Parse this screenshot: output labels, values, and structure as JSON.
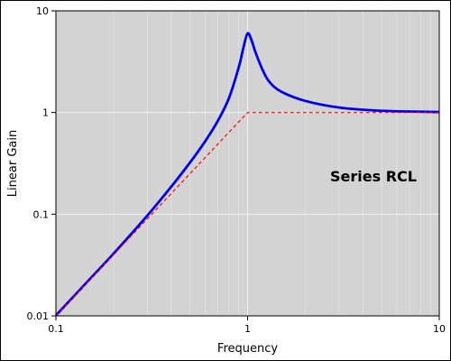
{
  "chart_data": {
    "type": "line",
    "xlabel": "Frequency",
    "ylabel": "Linear Gain",
    "annotation": "Series RCL",
    "x_scale": "log",
    "y_scale": "log",
    "xlim": [
      0.1,
      10
    ],
    "ylim": [
      0.01,
      10
    ],
    "x_ticks": [
      {
        "value": 0.1,
        "label": "0.1"
      },
      {
        "value": 1,
        "label": "1"
      },
      {
        "value": 10,
        "label": "10"
      }
    ],
    "y_ticks": [
      {
        "value": 0.01,
        "label": "0.01"
      },
      {
        "value": 0.1,
        "label": "0.1"
      },
      {
        "value": 1,
        "label": "1"
      },
      {
        "value": 10,
        "label": "10"
      }
    ],
    "grid": true,
    "background_color": "#d3d3d3",
    "series": [
      {
        "style": "solid",
        "color": "#0000ee",
        "x": [
          0.1,
          0.15,
          0.2,
          0.3,
          0.4,
          0.5,
          0.6,
          0.7,
          0.8,
          0.9,
          0.95,
          1.0,
          1.05,
          1.1,
          1.2,
          1.3,
          1.5,
          2.0,
          3.0,
          5.0,
          10.0
        ],
        "y": [
          0.0101,
          0.0229,
          0.041,
          0.097,
          0.187,
          0.321,
          0.52,
          0.83,
          1.39,
          2.8,
          4.3,
          6.0,
          5.1,
          3.9,
          2.6,
          2.0,
          1.6,
          1.3,
          1.12,
          1.04,
          1.01
        ]
      },
      {
        "style": "dashed",
        "color": "#ff0000",
        "x": [
          0.1,
          1.0,
          10.0
        ],
        "y": [
          0.01,
          1.0,
          1.0
        ]
      }
    ]
  }
}
